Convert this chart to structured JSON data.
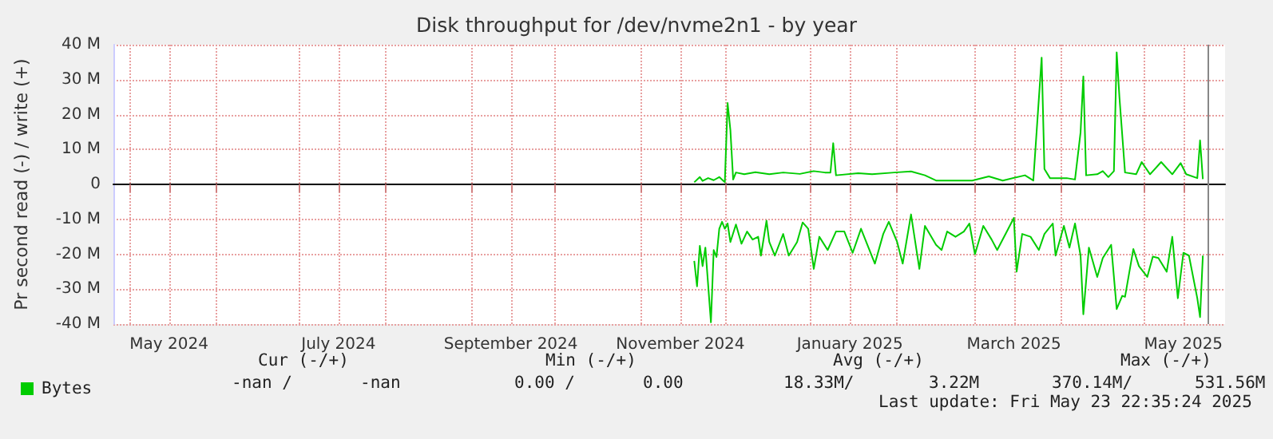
{
  "chart_data": {
    "type": "line",
    "title": "Disk throughput for /dev/nvme2n1 - by year",
    "ylabel": "Pr second read (-) / write (+)",
    "xlim": [
      "2024-04-25",
      "2025-05-30"
    ],
    "xticks": [
      {
        "value": "2024-05-01",
        "label": null
      },
      {
        "value": "2024-05-15",
        "label": "May 2024"
      },
      {
        "value": "2024-06-01",
        "label": null
      },
      {
        "value": "2024-07-01",
        "label": null
      },
      {
        "value": "2024-07-15",
        "label": "July 2024"
      },
      {
        "value": "2024-08-01",
        "label": null
      },
      {
        "value": "2024-09-01",
        "label": null
      },
      {
        "value": "2024-09-15",
        "label": "September 2024"
      },
      {
        "value": "2024-10-01",
        "label": null
      },
      {
        "value": "2024-11-01",
        "label": null
      },
      {
        "value": "2024-11-15",
        "label": "November 2024"
      },
      {
        "value": "2024-12-01",
        "label": null
      },
      {
        "value": "2025-01-01",
        "label": null
      },
      {
        "value": "2025-01-15",
        "label": "January 2025"
      },
      {
        "value": "2025-02-01",
        "label": null
      },
      {
        "value": "2025-03-01",
        "label": null
      },
      {
        "value": "2025-03-15",
        "label": "March 2025"
      },
      {
        "value": "2025-04-01",
        "label": null
      },
      {
        "value": "2025-05-01",
        "label": null
      },
      {
        "value": "2025-05-15",
        "label": "May 2025"
      }
    ],
    "ylim": [
      -40,
      40
    ],
    "yticks": [
      {
        "value": -40,
        "label": "-40 M"
      },
      {
        "value": -30,
        "label": "-30 M"
      },
      {
        "value": -20,
        "label": "-20 M"
      },
      {
        "value": -10,
        "label": "-10 M"
      },
      0,
      {
        "value": 10,
        "label": "10 M"
      },
      {
        "value": 20,
        "label": "20 M"
      },
      {
        "value": 30,
        "label": "30 M"
      },
      {
        "value": 40,
        "label": "40 M"
      }
    ],
    "grid": true,
    "legend": "bottom left",
    "marker": "none",
    "line_style": "solid",
    "ref_lines": [
      {
        "axis": "x",
        "value": "2025-05-23T22:35",
        "color": "#888888"
      }
    ],
    "annotations": [
      "Cur (-/+)",
      "Min (-/+)",
      "Avg (-/+)",
      "Max (-/+)",
      "-nan /",
      "-nan",
      "0.00 /",
      "0.00",
      "18.33M/",
      "3.22M",
      "370.14M/",
      "531.56M",
      "Last update: Fri May 23 22:35:24 2025"
    ],
    "series": [
      {
        "name": "Bytes",
        "color": "#00cc00",
        "x": [
          "2024-11-20",
          "2024-11-22",
          "2024-11-23",
          "2024-11-25",
          "2024-11-27",
          "2024-11-29",
          "2024-12-01",
          "2024-12-02",
          "2024-12-03",
          "2024-12-04",
          "2024-12-05",
          "2024-12-08",
          "2024-12-12",
          "2024-12-17",
          "2024-12-22",
          "2024-12-28",
          "2025-01-02",
          "2025-01-06",
          "2025-01-08",
          "2025-01-09",
          "2025-01-10",
          "2025-01-18",
          "2025-01-23",
          "2025-01-31",
          "2025-02-06",
          "2025-02-11",
          "2025-02-15",
          "2025-02-21",
          "2025-02-28",
          "2025-03-06",
          "2025-03-11",
          "2025-03-19",
          "2025-03-22",
          "2025-03-25",
          "2025-03-26",
          "2025-03-28",
          "2025-04-03",
          "2025-04-06",
          "2025-04-08",
          "2025-04-09",
          "2025-04-10",
          "2025-04-14",
          "2025-04-16",
          "2025-04-18",
          "2025-04-20",
          "2025-04-21",
          "2025-04-22",
          "2025-04-24",
          "2025-04-28",
          "2025-04-30",
          "2025-05-03",
          "2025-05-07",
          "2025-05-11",
          "2025-05-14",
          "2025-05-16",
          "2025-05-20",
          "2025-05-21",
          "2025-05-22"
        ],
        "values": [
          0.6,
          2.1,
          1,
          1.8,
          1.2,
          2.1,
          0.6,
          23.3,
          15.6,
          1.4,
          3.4,
          2.9,
          3.5,
          2.9,
          3.4,
          3,
          3.8,
          3.4,
          3.4,
          11.8,
          2.6,
          3.2,
          2.9,
          3.4,
          3.7,
          2.6,
          1.1,
          1.1,
          1.1,
          2.3,
          1.1,
          2.6,
          1.1,
          36.3,
          4.4,
          1.8,
          1.8,
          1.4,
          14.9,
          30.9,
          2.6,
          2.9,
          3.8,
          2.1,
          3.8,
          37.8,
          24.8,
          3.4,
          2.9,
          6.4,
          2.9,
          6.4,
          2.9,
          6.1,
          2.9,
          1.8,
          12.6,
          1.5
        ]
      },
      {
        "color": "#00cc00",
        "x": [
          "2024-11-20",
          "2024-11-21",
          "2024-11-22",
          "2024-11-23",
          "2024-11-24",
          "2024-11-26",
          "2024-11-27",
          "2024-11-28",
          "2024-11-29",
          "2024-11-30",
          "2024-12-01",
          "2024-12-02",
          "2024-12-03",
          "2024-12-05",
          "2024-12-07",
          "2024-12-09",
          "2024-12-11",
          "2024-12-13",
          "2024-12-14",
          "2024-12-16",
          "2024-12-17",
          "2024-12-19",
          "2024-12-22",
          "2024-12-24",
          "2024-12-27",
          "2024-12-29",
          "2024-12-31",
          "2025-01-02",
          "2025-01-04",
          "2025-01-07",
          "2025-01-10",
          "2025-01-13",
          "2025-01-16",
          "2025-01-19",
          "2025-01-24",
          "2025-01-27",
          "2025-01-29",
          "2025-02-01",
          "2025-02-03",
          "2025-02-06",
          "2025-02-09",
          "2025-02-11",
          "2025-02-15",
          "2025-02-17",
          "2025-02-19",
          "2025-02-22",
          "2025-02-25",
          "2025-02-27",
          "2025-03-01",
          "2025-03-04",
          "2025-03-07",
          "2025-03-09",
          "2025-03-13",
          "2025-03-15",
          "2025-03-16",
          "2025-03-18",
          "2025-03-21",
          "2025-03-24",
          "2025-03-26",
          "2025-03-29",
          "2025-03-30",
          "2025-04-02",
          "2025-04-04",
          "2025-04-06",
          "2025-04-08",
          "2025-04-09",
          "2025-04-11",
          "2025-04-14",
          "2025-04-16",
          "2025-04-19",
          "2025-04-21",
          "2025-04-23",
          "2025-04-24",
          "2025-04-27",
          "2025-04-29",
          "2025-05-02",
          "2025-05-04",
          "2025-05-06",
          "2025-05-09",
          "2025-05-11",
          "2025-05-13",
          "2025-05-15",
          "2025-05-17",
          "2025-05-20",
          "2025-05-21",
          "2025-05-22"
        ],
        "values": [
          -21.9,
          -29.2,
          -17.6,
          -23.4,
          -18.1,
          -39.5,
          -18.8,
          -20.8,
          -12.7,
          -10.7,
          -12.7,
          -11.2,
          -16.5,
          -11.5,
          -17,
          -13.5,
          -15.8,
          -15,
          -20.4,
          -10.4,
          -16.5,
          -20.4,
          -14.2,
          -20.4,
          -16.5,
          -10.9,
          -12.7,
          -24.2,
          -15,
          -18.8,
          -13.5,
          -13.5,
          -19.6,
          -12.7,
          -22.7,
          -14.2,
          -10.7,
          -16.5,
          -22.7,
          -8.6,
          -24.2,
          -11.9,
          -17.3,
          -18.8,
          -13.5,
          -15,
          -13.5,
          -11.2,
          -20,
          -11.9,
          -15.8,
          -18.8,
          -12.7,
          -9.6,
          -25,
          -14.2,
          -15,
          -18.8,
          -14.2,
          -11.2,
          -20.4,
          -11.9,
          -18.1,
          -11.2,
          -20.4,
          -37.2,
          -18.1,
          -26.5,
          -21.1,
          -17.3,
          -35.7,
          -31.9,
          -32.2,
          -18.5,
          -23.4,
          -26.5,
          -20.7,
          -21.1,
          -25,
          -15,
          -32.6,
          -19.6,
          -20.4,
          -32.6,
          -38,
          -20.4
        ]
      }
    ]
  }
}
